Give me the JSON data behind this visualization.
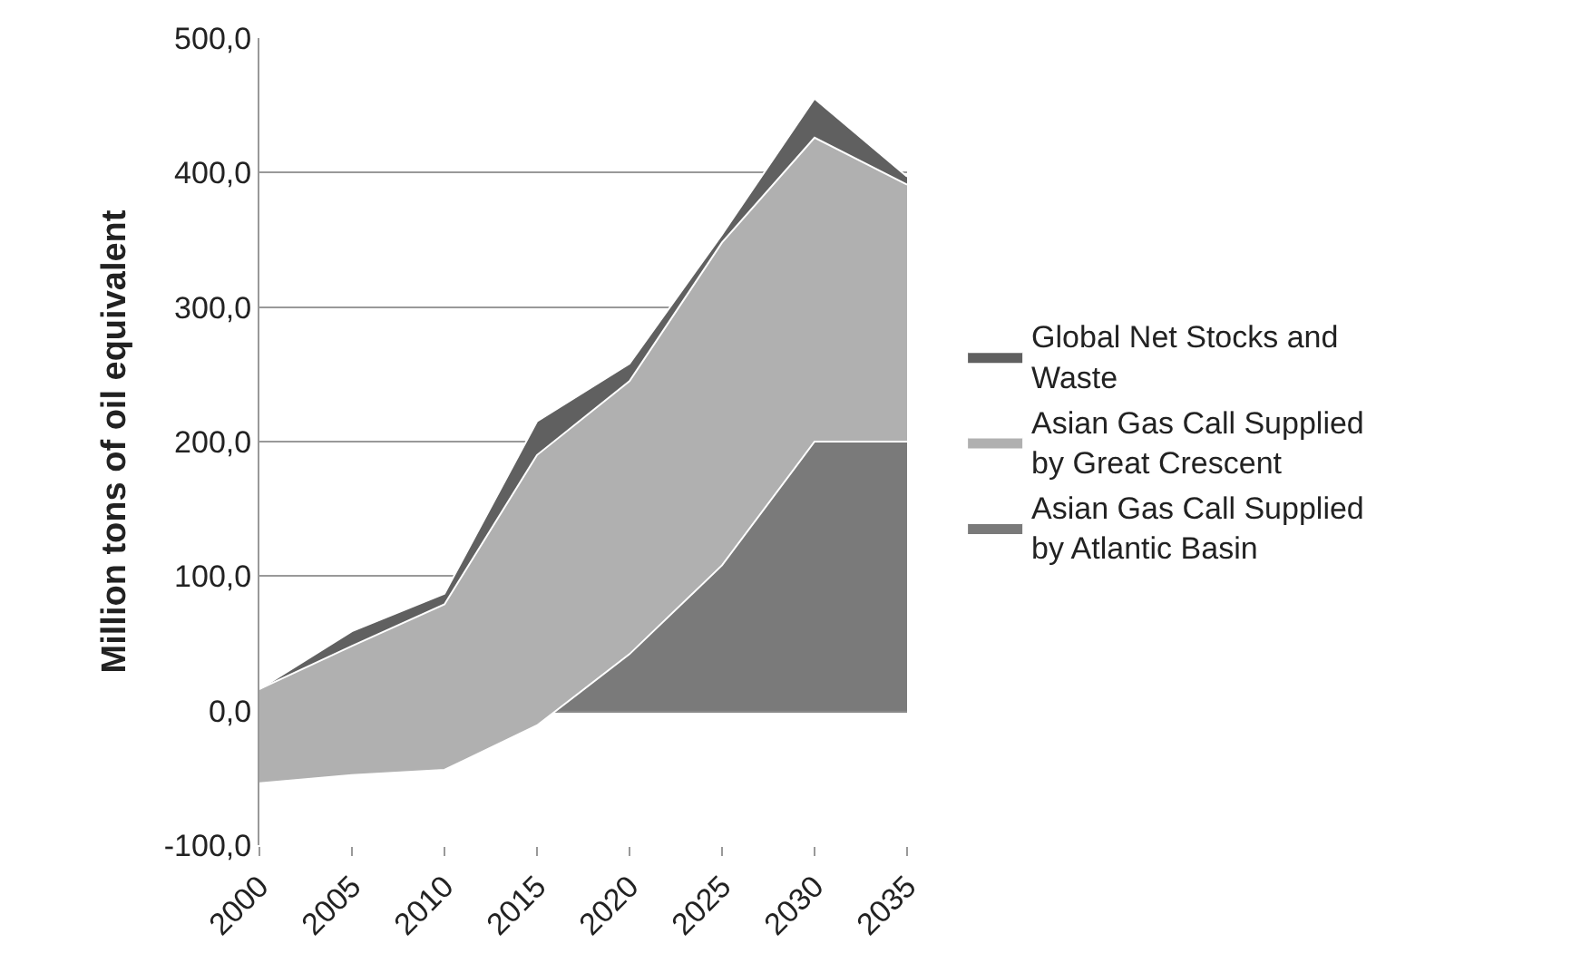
{
  "chart_data": {
    "type": "area",
    "stacked": true,
    "ylabel": "Million tons of oil equivalent",
    "categories": [
      "2000",
      "2005",
      "2010",
      "2015",
      "2020",
      "2025",
      "2030",
      "2035"
    ],
    "series": [
      {
        "name": "Asian Gas Call Supplied by Atlantic Basin",
        "color": "#7a7a7a",
        "values": [
          -54,
          -48,
          -44,
          -11,
          42,
          108,
          200,
          200
        ]
      },
      {
        "name": "Asian Gas Call Supplied by Great Crescent",
        "color": "#b0b0b0",
        "values": [
          70,
          96,
          123,
          201,
          203,
          240,
          226,
          191
        ]
      },
      {
        "name": "Global Net Stocks and Waste",
        "color": "#606060",
        "values": [
          0,
          11,
          8,
          25,
          13,
          6,
          29,
          6
        ]
      }
    ],
    "ylim": [
      -100,
      500
    ],
    "yticks": [
      {
        "value": -100,
        "label": "-100,0"
      },
      {
        "value": 0,
        "label": "0,0"
      },
      {
        "value": 100,
        "label": "100,0"
      },
      {
        "value": 200,
        "label": "200,0"
      },
      {
        "value": 300,
        "label": "300,0"
      },
      {
        "value": 400,
        "label": "400,0"
      },
      {
        "value": 500,
        "label": "500,0"
      }
    ],
    "grid": "y",
    "legend": "right"
  }
}
